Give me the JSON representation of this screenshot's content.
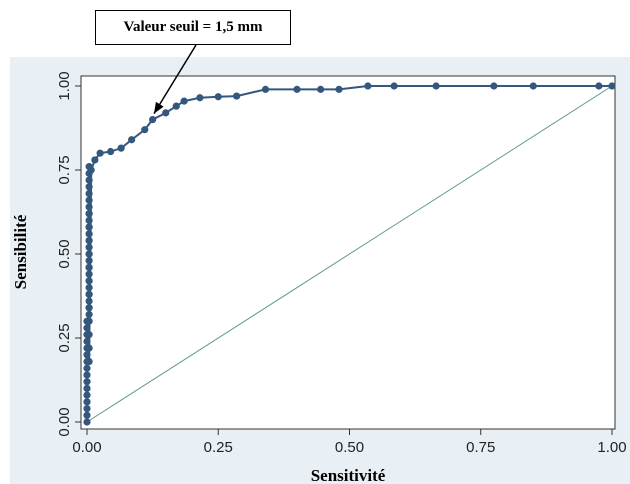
{
  "chart_data": {
    "type": "line",
    "title": "",
    "xlabel": "Sensitivité",
    "ylabel": "Sensibilité",
    "xlim": [
      0,
      1
    ],
    "ylim": [
      0,
      1
    ],
    "xticks": [
      "0.00",
      "0.25",
      "0.50",
      "0.75",
      "1.00"
    ],
    "yticks": [
      "0.00",
      "0.25",
      "0.50",
      "0.75",
      "1.00"
    ],
    "grid": false,
    "annotation": {
      "text": "Valeur seuil = 1,5 mm",
      "target": [
        0.12,
        0.9
      ]
    },
    "colors": {
      "curve": "#34577e",
      "reference": "#5f9a8a",
      "panel": "#e9f0f5"
    },
    "series": [
      {
        "role": "roc-curve",
        "x": [
          0,
          0,
          0,
          0,
          0,
          0,
          0,
          0,
          0,
          0,
          0,
          0,
          0,
          0,
          0,
          0,
          0.004,
          0.004,
          0.004,
          0.004,
          0.004,
          0.004,
          0.004,
          0.004,
          0.004,
          0.004,
          0.004,
          0.004,
          0.004,
          0.004,
          0.004,
          0.004,
          0.004,
          0.004,
          0.004,
          0.004,
          0.004,
          0.004,
          0.004,
          0.004,
          0.004,
          0.004,
          0.004,
          0.004,
          0.004,
          0.004,
          0.004,
          0.004,
          0.004,
          0.004,
          0.004,
          0.008,
          0.015,
          0.025,
          0.045,
          0.065,
          0.085,
          0.11,
          0.125,
          0.15,
          0.17,
          0.185,
          0.215,
          0.25,
          0.285,
          0.34,
          0.4,
          0.445,
          0.48,
          0.535,
          0.585,
          0.665,
          0.775,
          0.85,
          0.975,
          1.0
        ],
        "y": [
          0,
          0.02,
          0.04,
          0.06,
          0.08,
          0.1,
          0.12,
          0.14,
          0.16,
          0.18,
          0.2,
          0.22,
          0.24,
          0.26,
          0.28,
          0.3,
          0.32,
          0.34,
          0.36,
          0.38,
          0.4,
          0.42,
          0.44,
          0.46,
          0.48,
          0.5,
          0.52,
          0.54,
          0.56,
          0.58,
          0.6,
          0.62,
          0.64,
          0.66,
          0.68,
          0.7,
          0.72,
          0.74,
          0.76,
          0.62,
          0.58,
          0.54,
          0.5,
          0.46,
          0.42,
          0.38,
          0.34,
          0.3,
          0.26,
          0.22,
          0.18,
          0.75,
          0.78,
          0.8,
          0.805,
          0.815,
          0.84,
          0.87,
          0.9,
          0.92,
          0.94,
          0.955,
          0.965,
          0.968,
          0.97,
          0.99,
          0.99,
          0.99,
          0.99,
          1.0,
          1.0,
          1.0,
          1.0,
          1.0,
          1.0,
          1.0
        ]
      },
      {
        "role": "reference-diagonal",
        "x": [
          0,
          1
        ],
        "y": [
          0,
          1
        ]
      }
    ]
  }
}
